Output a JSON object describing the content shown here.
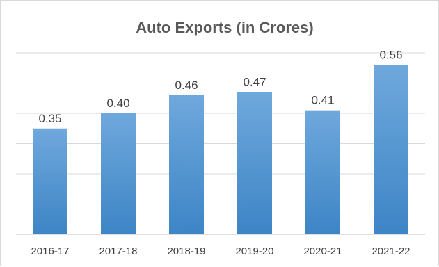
{
  "chart_data": {
    "type": "bar",
    "title": "Auto Exports (in Crores)",
    "categories": [
      "2016-17",
      "2017-18",
      "2018-19",
      "2019-20",
      "2020-21",
      "2021-22"
    ],
    "values": [
      0.35,
      0.4,
      0.46,
      0.47,
      0.41,
      0.56
    ],
    "data_labels": [
      "0.35",
      "0.40",
      "0.46",
      "0.47",
      "0.41",
      "0.56"
    ],
    "xlabel": "",
    "ylabel": "",
    "ylim": [
      0,
      0.6
    ],
    "y_grid_step": 0.1,
    "grid": true,
    "legend": "none",
    "bar_color_top": "#6fa8dc",
    "bar_color_bottom": "#3d85c6",
    "gridline_color": "#d9d9d9"
  }
}
